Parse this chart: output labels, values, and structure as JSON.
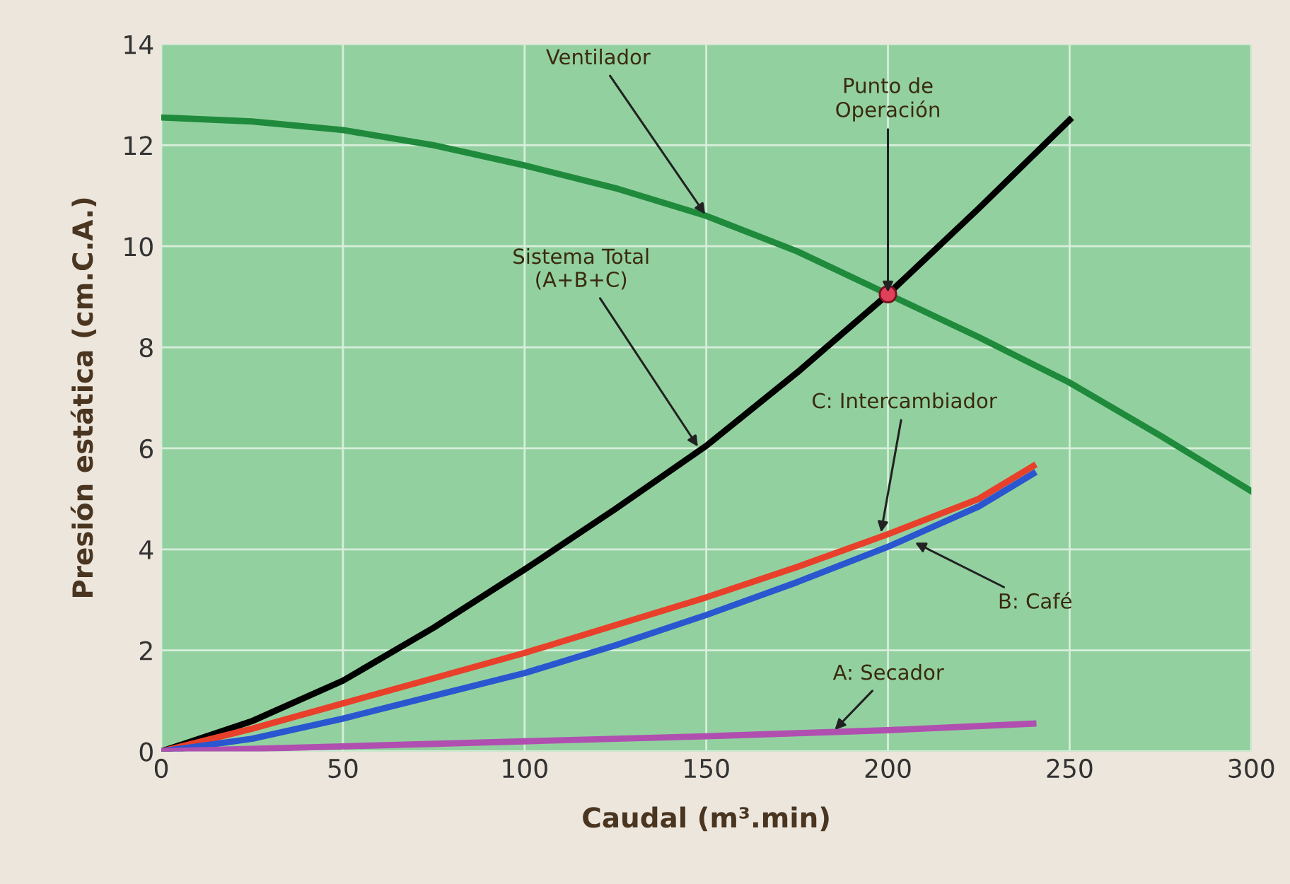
{
  "chart_data": {
    "type": "line",
    "xlabel": "Caudal (m³.min)",
    "ylabel": "Presión estática (cm.C.A.)",
    "xlim": [
      0,
      300
    ],
    "ylim": [
      0,
      14
    ],
    "xticks": [
      0,
      50,
      100,
      150,
      200,
      250,
      300
    ],
    "yticks": [
      0,
      2,
      4,
      6,
      8,
      10,
      12,
      14
    ],
    "grid": true,
    "marker": "none",
    "line_style": "solid",
    "series": [
      {
        "color": "#1f8a3c",
        "x": [
          0,
          25,
          50,
          75,
          100,
          125,
          150,
          175,
          200,
          225,
          250,
          275,
          300
        ],
        "values": [
          12.55,
          12.47,
          12.3,
          12.0,
          11.6,
          11.15,
          10.6,
          9.9,
          9.05,
          8.2,
          7.3,
          6.25,
          5.15
        ]
      },
      {
        "color": "#000000",
        "x": [
          0,
          25,
          50,
          75,
          100,
          125,
          150,
          175,
          200,
          225,
          250
        ],
        "values": [
          0,
          0.6,
          1.4,
          2.45,
          3.6,
          4.8,
          6.05,
          7.5,
          9.05,
          10.75,
          12.5
        ]
      },
      {
        "color": "#e8402a",
        "x": [
          0,
          25,
          50,
          75,
          100,
          125,
          150,
          175,
          200,
          225,
          240
        ],
        "values": [
          0,
          0.45,
          0.95,
          1.45,
          1.95,
          2.5,
          3.05,
          3.65,
          4.3,
          5.0,
          5.65
        ]
      },
      {
        "color": "#2a56d0",
        "x": [
          0,
          25,
          50,
          75,
          100,
          125,
          150,
          175,
          200,
          225,
          240
        ],
        "values": [
          0,
          0.25,
          0.65,
          1.1,
          1.55,
          2.1,
          2.7,
          3.35,
          4.05,
          4.85,
          5.5
        ]
      },
      {
        "color": "#b04fb0",
        "x": [
          0,
          50,
          100,
          150,
          200,
          240
        ],
        "values": [
          0,
          0.1,
          0.2,
          0.3,
          0.42,
          0.55
        ]
      },
      {
        "type": "scatter",
        "marker": "circle",
        "color": "#e0405a",
        "x": [
          200
        ],
        "values": [
          9.05
        ]
      }
    ],
    "annotations": [
      {
        "text": "Ventilador",
        "x": 150,
        "y": 10.6
      },
      {
        "text": "Punto de\nOperación",
        "x": 200,
        "y": 9.05
      },
      {
        "text": "Sistema Total\n(A+B+C)",
        "x": 148,
        "y": 6.0
      },
      {
        "text": "C: Intercambiador",
        "x": 198,
        "y": 4.3
      },
      {
        "text": "B: Café",
        "x": 207,
        "y": 4.15
      },
      {
        "text": "A: Secador",
        "x": 185,
        "y": 0.4
      }
    ]
  }
}
